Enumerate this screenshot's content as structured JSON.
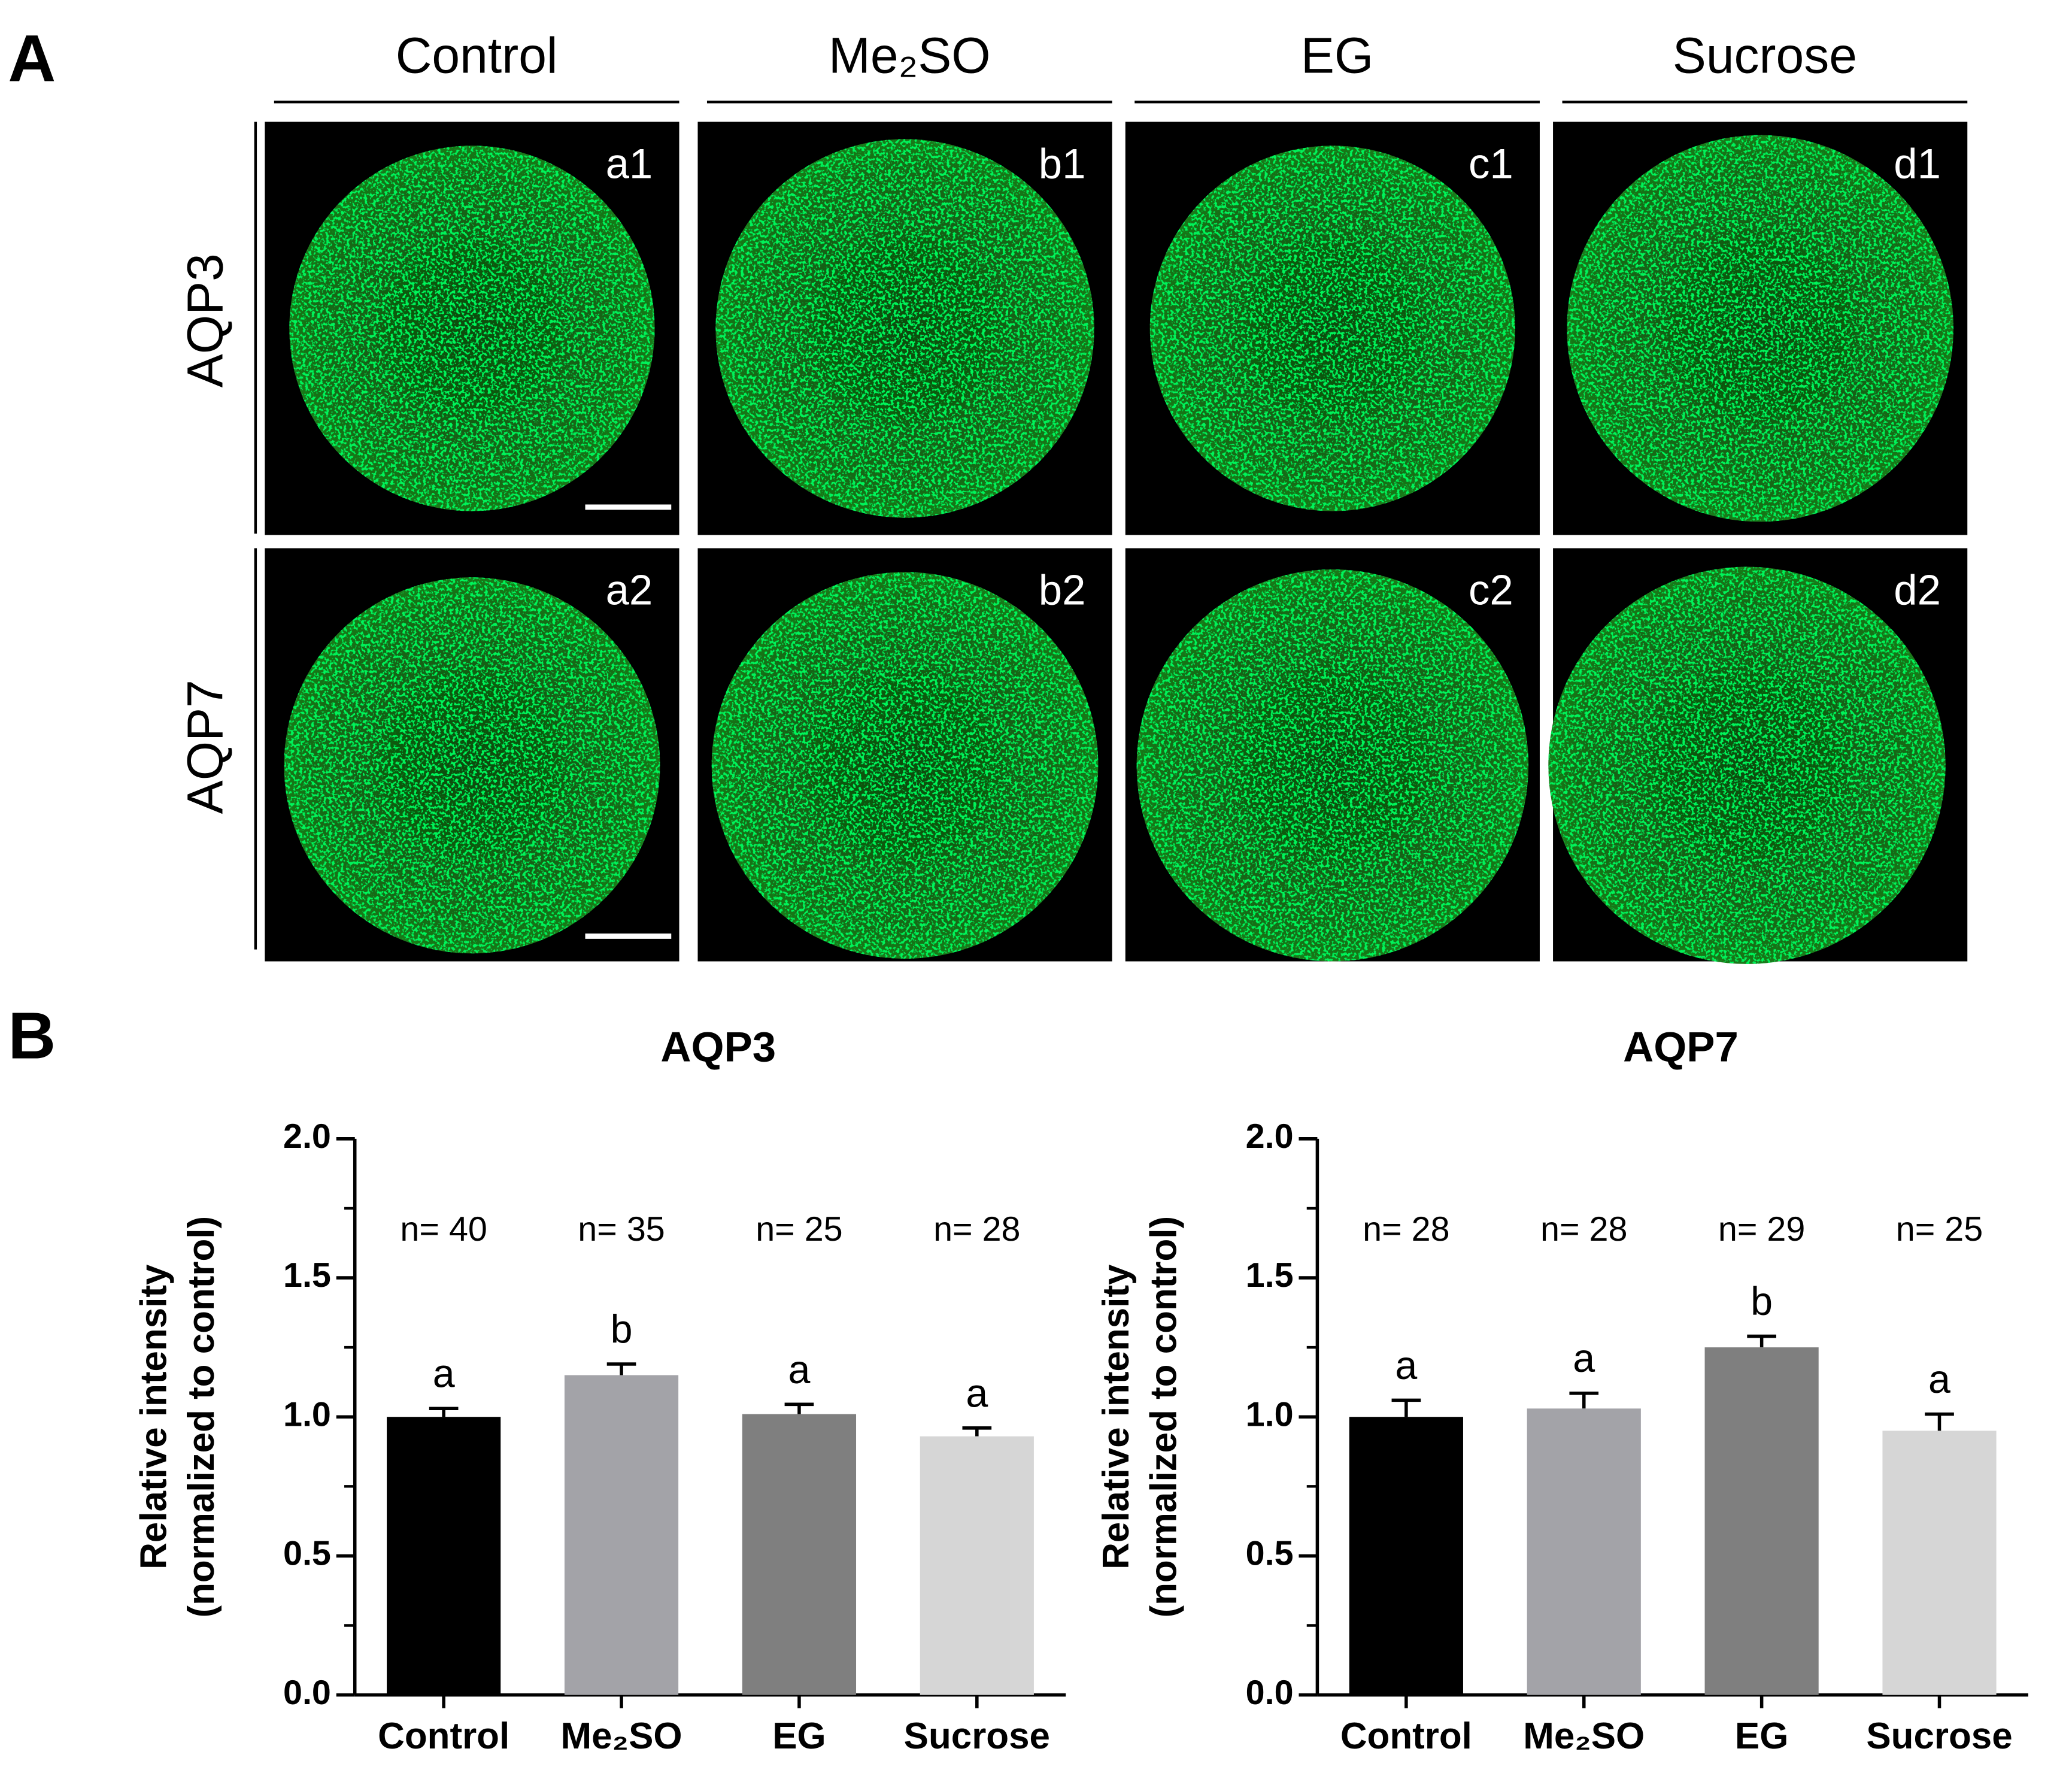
{
  "panel_a": {
    "label": "A",
    "columns": [
      "Control",
      "Me₂SO",
      "EG",
      "Sucrose"
    ],
    "rows": [
      "AQP3",
      "AQP7"
    ],
    "images": [
      [
        "a1",
        "b1",
        "c1",
        "d1"
      ],
      [
        "a2",
        "b2",
        "c2",
        "d2"
      ]
    ]
  },
  "panel_b_label": "B",
  "chart_data": [
    {
      "type": "bar",
      "title": "AQP3",
      "ylabel": [
        "Relative intensity",
        "(normalized to control)"
      ],
      "categories": [
        "Control",
        "Me₂SO",
        "EG",
        "Sucrose"
      ],
      "values": [
        1.0,
        1.15,
        1.01,
        0.93
      ],
      "errors": [
        0.03,
        0.04,
        0.035,
        0.03
      ],
      "n_labels": [
        "n= 40",
        "n= 35",
        "n= 25",
        "n= 28"
      ],
      "letters": [
        "a",
        "b",
        "a",
        "a"
      ],
      "colors": [
        "#000000",
        "#a3a3a8",
        "#7f7f7f",
        "#d6d6d6"
      ],
      "ylim": [
        0,
        2
      ],
      "yticks": [
        {
          "value": 0,
          "label": "0.0"
        },
        0.5,
        {
          "value": 1,
          "label": "1.0"
        },
        1.5,
        {
          "value": 2,
          "label": "2.0"
        }
      ]
    },
    {
      "type": "bar",
      "title": "AQP7",
      "ylabel": [
        "Relative intensity",
        "(normalized to control)"
      ],
      "categories": [
        "Control",
        "Me₂SO",
        "EG",
        "Sucrose"
      ],
      "values": [
        1.0,
        1.03,
        1.25,
        0.95
      ],
      "errors": [
        0.06,
        0.055,
        0.04,
        0.06
      ],
      "n_labels": [
        "n= 28",
        "n= 28",
        "n= 29",
        "n= 25"
      ],
      "letters": [
        "a",
        "a",
        "b",
        "a"
      ],
      "colors": [
        "#000000",
        "#a3a3a8",
        "#7f7f7f",
        "#d6d6d6"
      ],
      "ylim": [
        0,
        2
      ],
      "yticks": [
        {
          "value": 0,
          "label": "0.0"
        },
        0.5,
        {
          "value": 1,
          "label": "1.0"
        },
        1.5,
        {
          "value": 2,
          "label": "2.0"
        }
      ]
    }
  ]
}
